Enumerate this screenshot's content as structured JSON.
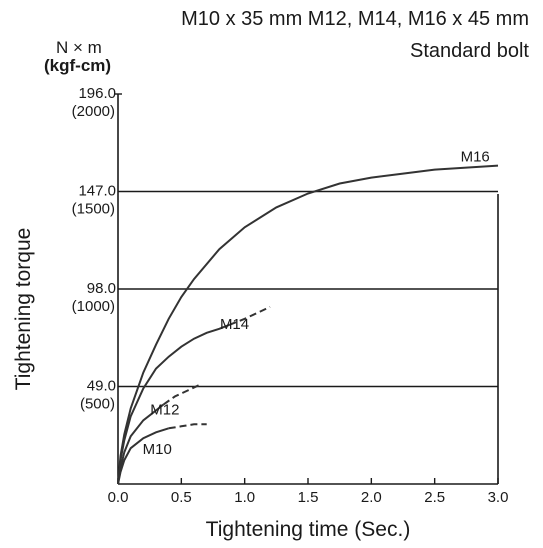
{
  "chart_data": {
    "type": "line",
    "title": "M10 x 35 mm M12, M14, M16 x 45 mm",
    "subtitle": "Standard bolt",
    "units": [
      "N × m",
      "(kgf-cm)"
    ],
    "xlabel": "Tightening time (Sec.)",
    "ylabel": "Tightening torque",
    "xlim": [
      0,
      3.0
    ],
    "ylim": [
      0,
      196.0
    ],
    "grid": "horizontal",
    "legend": "none",
    "x_ticks": [
      {
        "value": 0.0,
        "label": "0.0"
      },
      {
        "value": 0.5,
        "label": "0.5"
      },
      {
        "value": 1.0,
        "label": "1.0"
      },
      {
        "value": 1.5,
        "label": "1.5"
      },
      {
        "value": 2.0,
        "label": "2.0"
      },
      {
        "value": 2.5,
        "label": "2.5"
      },
      {
        "value": 3.0,
        "label": "3.0"
      }
    ],
    "y_ticks": [
      {
        "value": 49.0,
        "label": "49.0",
        "sub": "(500)"
      },
      {
        "value": 98.0,
        "label": "98.0",
        "sub": "(1000)"
      },
      {
        "value": 147.0,
        "label": "147.0",
        "sub": "(1500)"
      },
      {
        "value": 196.0,
        "label": "196.0",
        "sub": "(2000)"
      }
    ],
    "series": [
      {
        "name": "M16",
        "points": [
          [
            0,
            0
          ],
          [
            0.02,
            14
          ],
          [
            0.05,
            25
          ],
          [
            0.1,
            38
          ],
          [
            0.2,
            56
          ],
          [
            0.3,
            70
          ],
          [
            0.4,
            83
          ],
          [
            0.5,
            94
          ],
          [
            0.6,
            103
          ],
          [
            0.8,
            118
          ],
          [
            1.0,
            129
          ],
          [
            1.25,
            139
          ],
          [
            1.5,
            146
          ],
          [
            1.75,
            151
          ],
          [
            2.0,
            154
          ],
          [
            2.25,
            156
          ],
          [
            2.5,
            158
          ],
          [
            2.75,
            159
          ],
          [
            3.0,
            160
          ]
        ],
        "dashed_points": []
      },
      {
        "name": "M14",
        "points": [
          [
            0,
            0
          ],
          [
            0.02,
            12
          ],
          [
            0.05,
            22
          ],
          [
            0.1,
            34
          ],
          [
            0.2,
            48
          ],
          [
            0.3,
            58
          ],
          [
            0.4,
            64
          ],
          [
            0.5,
            69
          ],
          [
            0.6,
            73
          ],
          [
            0.7,
            76
          ],
          [
            0.8,
            78
          ],
          [
            0.88,
            80
          ]
        ],
        "dashed_points": [
          [
            0.88,
            80
          ],
          [
            1.0,
            83
          ],
          [
            1.1,
            86
          ],
          [
            1.2,
            89
          ]
        ]
      },
      {
        "name": "M12",
        "points": [
          [
            0,
            0
          ],
          [
            0.02,
            8
          ],
          [
            0.05,
            16
          ],
          [
            0.1,
            24
          ],
          [
            0.2,
            32
          ],
          [
            0.3,
            37
          ],
          [
            0.36,
            40
          ]
        ],
        "dashed_points": [
          [
            0.36,
            40
          ],
          [
            0.45,
            44
          ],
          [
            0.55,
            47
          ],
          [
            0.65,
            50
          ]
        ]
      },
      {
        "name": "M10",
        "points": [
          [
            0,
            0
          ],
          [
            0.02,
            6
          ],
          [
            0.05,
            12
          ],
          [
            0.1,
            18
          ],
          [
            0.2,
            23
          ],
          [
            0.3,
            26
          ],
          [
            0.4,
            28
          ]
        ],
        "dashed_points": [
          [
            0.4,
            28
          ],
          [
            0.5,
            29
          ],
          [
            0.6,
            30
          ],
          [
            0.7,
            30
          ]
        ]
      }
    ],
    "annotations": [
      {
        "text": "M16",
        "x": 2.82,
        "y": 162
      },
      {
        "text": "M14",
        "x": 0.92,
        "y": 78
      },
      {
        "text": "M12",
        "x": 0.37,
        "y": 35
      },
      {
        "text": "M10",
        "x": 0.31,
        "y": 15
      }
    ]
  }
}
